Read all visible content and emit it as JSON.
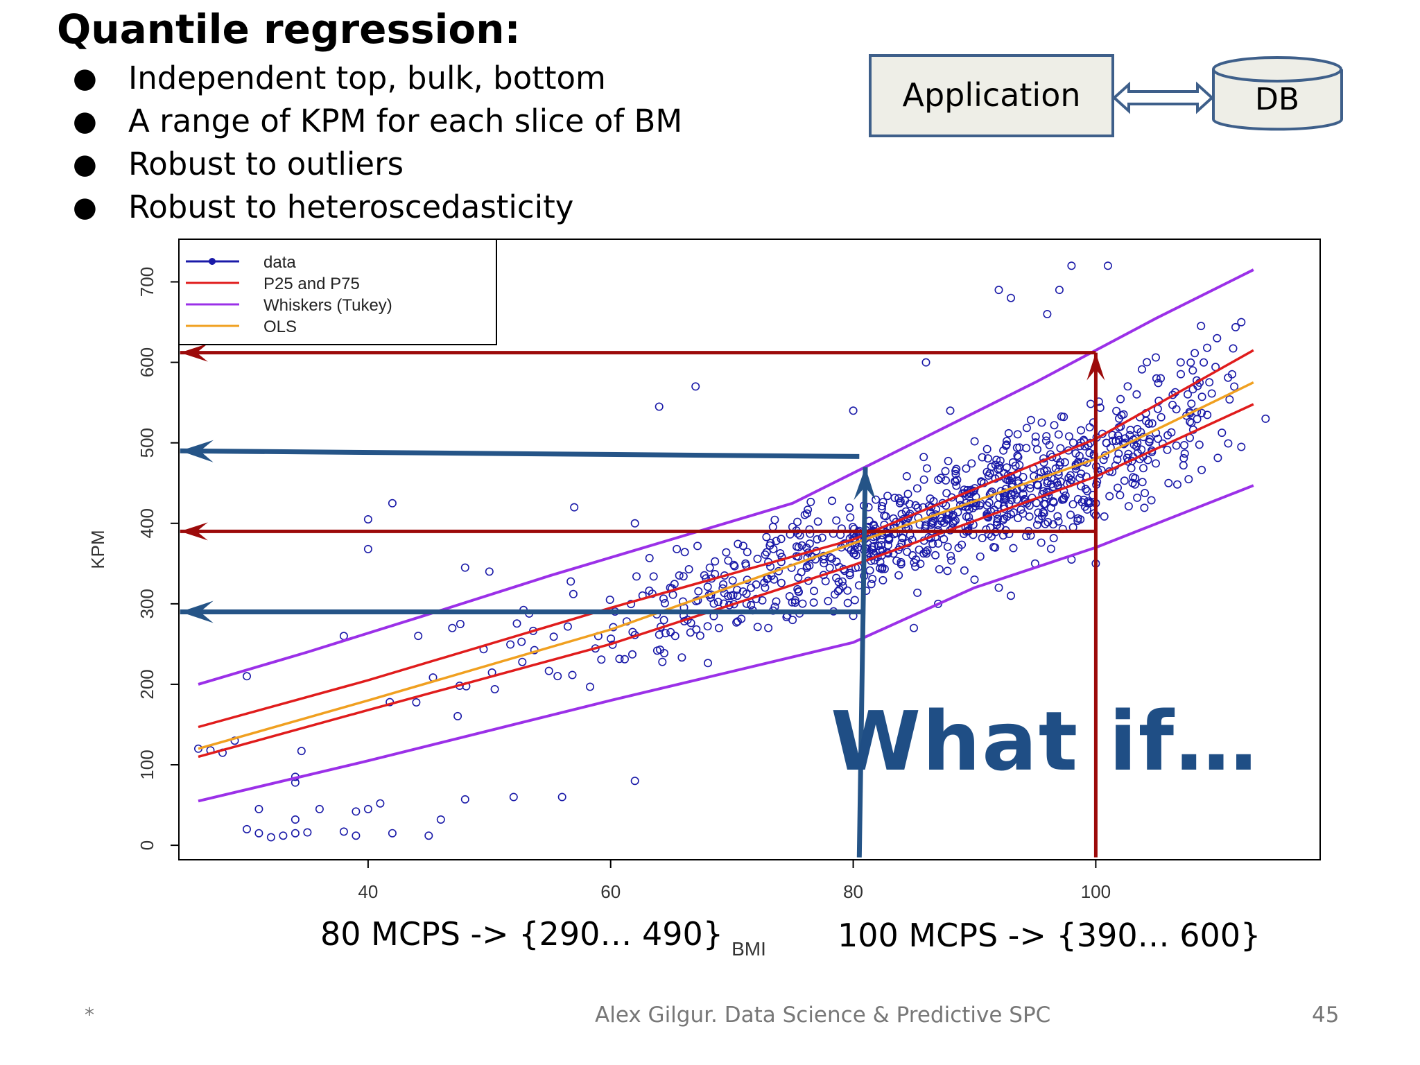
{
  "slide": {
    "title": "Quantile regression:",
    "bullets": [
      "Independent top, bulk, bottom",
      "A range of KPM for each slice of BM",
      "Robust to outliers",
      "Robust to heteroscedasticity"
    ],
    "diagram": {
      "app_label": "Application",
      "db_label": "DB"
    },
    "what_if": "What if…",
    "annotation_80": "80 MCPS -> {290… 490}",
    "annotation_100": "100 MCPS -> {390… 600}",
    "footer": {
      "left": "*",
      "center": "Alex Gilgur.  Data Science & Predictive SPC",
      "page": "45"
    }
  },
  "colors": {
    "data": "#1a1aa8",
    "quantile": "#e01c1c",
    "whisker": "#9b30e8",
    "ols": "#f0a020",
    "arrow_red": "#9c0a0a",
    "arrow_blue": "#255487",
    "diagram_fill": "#eeeee7",
    "diagram_stroke": "#3e5f8a"
  },
  "chart_data": {
    "type": "scatter",
    "xlabel": "BMI",
    "ylabel": "KPM",
    "xlim": [
      24.4,
      118.5
    ],
    "ylim": [
      -18,
      753
    ],
    "xticks": [
      40,
      60,
      80,
      100
    ],
    "yticks": [
      0,
      100,
      200,
      300,
      400,
      500,
      600,
      700
    ],
    "legend": {
      "position": "top-left",
      "entries": [
        "data",
        "P25 and P75",
        "Whiskers (Tukey)",
        "OLS"
      ]
    },
    "lines": [
      {
        "name": "Upper whisker",
        "role": "whisker",
        "points": [
          [
            26,
            200
          ],
          [
            35,
            240
          ],
          [
            45,
            287
          ],
          [
            55,
            335
          ],
          [
            65,
            380
          ],
          [
            75,
            425
          ],
          [
            85,
            500
          ],
          [
            95,
            575
          ],
          [
            105,
            655
          ],
          [
            113,
            715
          ]
        ]
      },
      {
        "name": "P75",
        "role": "quantile",
        "points": [
          [
            26,
            147
          ],
          [
            40,
            205
          ],
          [
            60,
            295
          ],
          [
            80,
            380
          ],
          [
            100,
            505
          ],
          [
            113,
            615
          ]
        ]
      },
      {
        "name": "OLS",
        "role": "ols",
        "points": [
          [
            26,
            120
          ],
          [
            40,
            180
          ],
          [
            60,
            268
          ],
          [
            80,
            375
          ],
          [
            100,
            480
          ],
          [
            113,
            575
          ]
        ]
      },
      {
        "name": "P25",
        "role": "quantile",
        "points": [
          [
            26,
            110
          ],
          [
            40,
            168
          ],
          [
            60,
            250
          ],
          [
            80,
            348
          ],
          [
            100,
            458
          ],
          [
            113,
            548
          ]
        ]
      },
      {
        "name": "Lower whisker",
        "role": "whisker",
        "points": [
          [
            26,
            55
          ],
          [
            40,
            105
          ],
          [
            60,
            180
          ],
          [
            80,
            252
          ],
          [
            90,
            320
          ],
          [
            100,
            370
          ],
          [
            113,
            447
          ]
        ]
      }
    ],
    "outliers": [
      [
        26,
        120
      ],
      [
        27,
        118
      ],
      [
        28,
        115
      ],
      [
        29,
        130
      ],
      [
        30,
        20
      ],
      [
        31,
        15
      ],
      [
        32,
        10
      ],
      [
        31,
        45
      ],
      [
        33,
        12
      ],
      [
        34,
        15
      ],
      [
        35,
        16
      ],
      [
        34,
        32
      ],
      [
        36,
        45
      ],
      [
        38,
        17
      ],
      [
        39,
        42
      ],
      [
        39,
        12
      ],
      [
        40,
        45
      ],
      [
        41,
        52
      ],
      [
        42,
        15
      ],
      [
        45,
        12
      ],
      [
        46,
        32
      ],
      [
        48,
        57
      ],
      [
        52,
        60
      ],
      [
        56,
        60
      ],
      [
        34,
        85
      ],
      [
        34,
        78
      ],
      [
        30,
        210
      ],
      [
        38,
        260
      ],
      [
        40,
        405
      ],
      [
        40,
        368
      ],
      [
        42,
        425
      ],
      [
        48,
        345
      ],
      [
        50,
        340
      ],
      [
        57,
        420
      ],
      [
        62,
        400
      ],
      [
        64,
        545
      ],
      [
        67,
        570
      ],
      [
        62,
        80
      ],
      [
        80,
        540
      ],
      [
        86,
        600
      ],
      [
        88,
        540
      ],
      [
        92,
        690
      ],
      [
        93,
        680
      ],
      [
        96,
        660
      ],
      [
        97,
        690
      ],
      [
        98,
        720
      ],
      [
        101,
        720
      ],
      [
        96,
        450
      ],
      [
        100,
        425
      ],
      [
        100,
        410
      ],
      [
        102,
        435
      ],
      [
        105,
        580
      ],
      [
        107,
        600
      ],
      [
        108,
        590
      ],
      [
        110,
        630
      ],
      [
        112,
        650
      ],
      [
        114,
        530
      ],
      [
        106,
        450
      ],
      [
        112,
        495
      ],
      [
        87,
        300
      ],
      [
        90,
        330
      ],
      [
        92,
        320
      ],
      [
        93,
        310
      ],
      [
        95,
        350
      ],
      [
        98,
        355
      ],
      [
        100,
        350
      ],
      [
        85,
        270
      ],
      [
        80,
        285
      ],
      [
        73,
        270
      ],
      [
        75,
        280
      ]
    ],
    "arrows": [
      {
        "color": "red",
        "from": [
          100,
          -15
        ],
        "to": [
          100,
          612
        ],
        "label": "x=100 up"
      },
      {
        "color": "red",
        "from": [
          100,
          612
        ],
        "to": [
          24.5,
          612
        ],
        "label": "to 600"
      },
      {
        "color": "red",
        "from": [
          100,
          390
        ],
        "to": [
          24.5,
          390
        ],
        "label": "to 390"
      },
      {
        "color": "blue",
        "from": [
          80.5,
          -15
        ],
        "to": [
          81,
          470
        ],
        "label": "x=80 up"
      },
      {
        "color": "blue",
        "from": [
          80.5,
          483
        ],
        "to": [
          24.5,
          490
        ],
        "label": "to 490"
      },
      {
        "color": "blue",
        "from": [
          81,
          290
        ],
        "to": [
          24.5,
          290
        ],
        "label": "to 290"
      }
    ]
  }
}
